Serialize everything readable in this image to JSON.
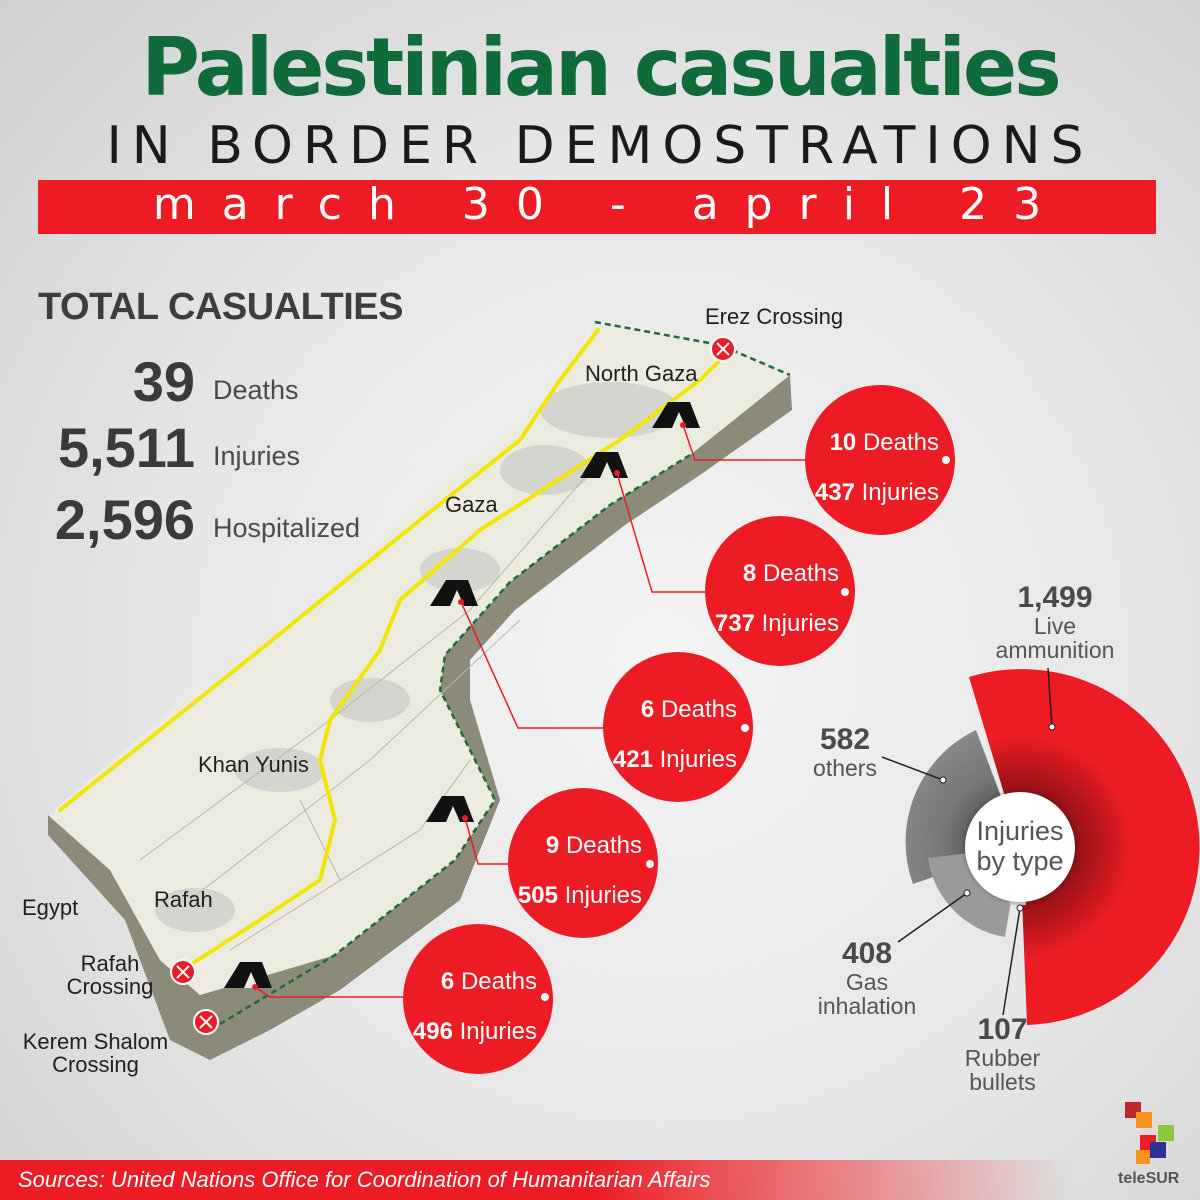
{
  "title": {
    "main": "Palestinian casualties",
    "sub": "IN BORDER DEMOSTRATIONS",
    "dates": "march 30 - april 23"
  },
  "totals": {
    "heading": "TOTAL CASUALTIES",
    "deaths": {
      "value": "39",
      "label": "Deaths"
    },
    "injuries": {
      "value": "5,511",
      "label": "Injuries"
    },
    "hospitalized": {
      "value": "2,596",
      "label": "Hospitalized"
    }
  },
  "places": {
    "erez": "Erez Crossing",
    "north_gaza": "North Gaza",
    "gaza": "Gaza",
    "khan_yunis": "Khan Yunis",
    "egypt": "Egypt",
    "rafah": "Rafah",
    "rafah_crossing": "Rafah Crossing",
    "kerem_shalom": "Kerem Shalom Crossing"
  },
  "sites": [
    {
      "deaths": "10",
      "deaths_label": "Deaths",
      "injuries": "437",
      "injuries_label": "Injuries"
    },
    {
      "deaths": "8",
      "deaths_label": "Deaths",
      "injuries": "737",
      "injuries_label": "Injuries"
    },
    {
      "deaths": "6",
      "deaths_label": "Deaths",
      "injuries": "421",
      "injuries_label": "Injuries"
    },
    {
      "deaths": "9",
      "deaths_label": "Deaths",
      "injuries": "505",
      "injuries_label": "Injuries"
    },
    {
      "deaths": "6",
      "deaths_label": "Deaths",
      "injuries": "496",
      "injuries_label": "Injuries"
    }
  ],
  "injury_types": {
    "center_label": "Injuries by type",
    "items": [
      {
        "value": "1,499",
        "label": "Live ammunition"
      },
      {
        "value": "582",
        "label": "others"
      },
      {
        "value": "408",
        "label": "Gas inhalation"
      },
      {
        "value": "107",
        "label": "Rubber bullets"
      }
    ]
  },
  "source": "Sources: United Nations Office for Coordination of Humanitarian Affairs",
  "brand": "teleSUR",
  "colors": {
    "title_green": "#0f6b3a",
    "accent_red": "#ed1c24",
    "road_yellow": "#f2e600",
    "map_fill": "#ecebe0"
  }
}
